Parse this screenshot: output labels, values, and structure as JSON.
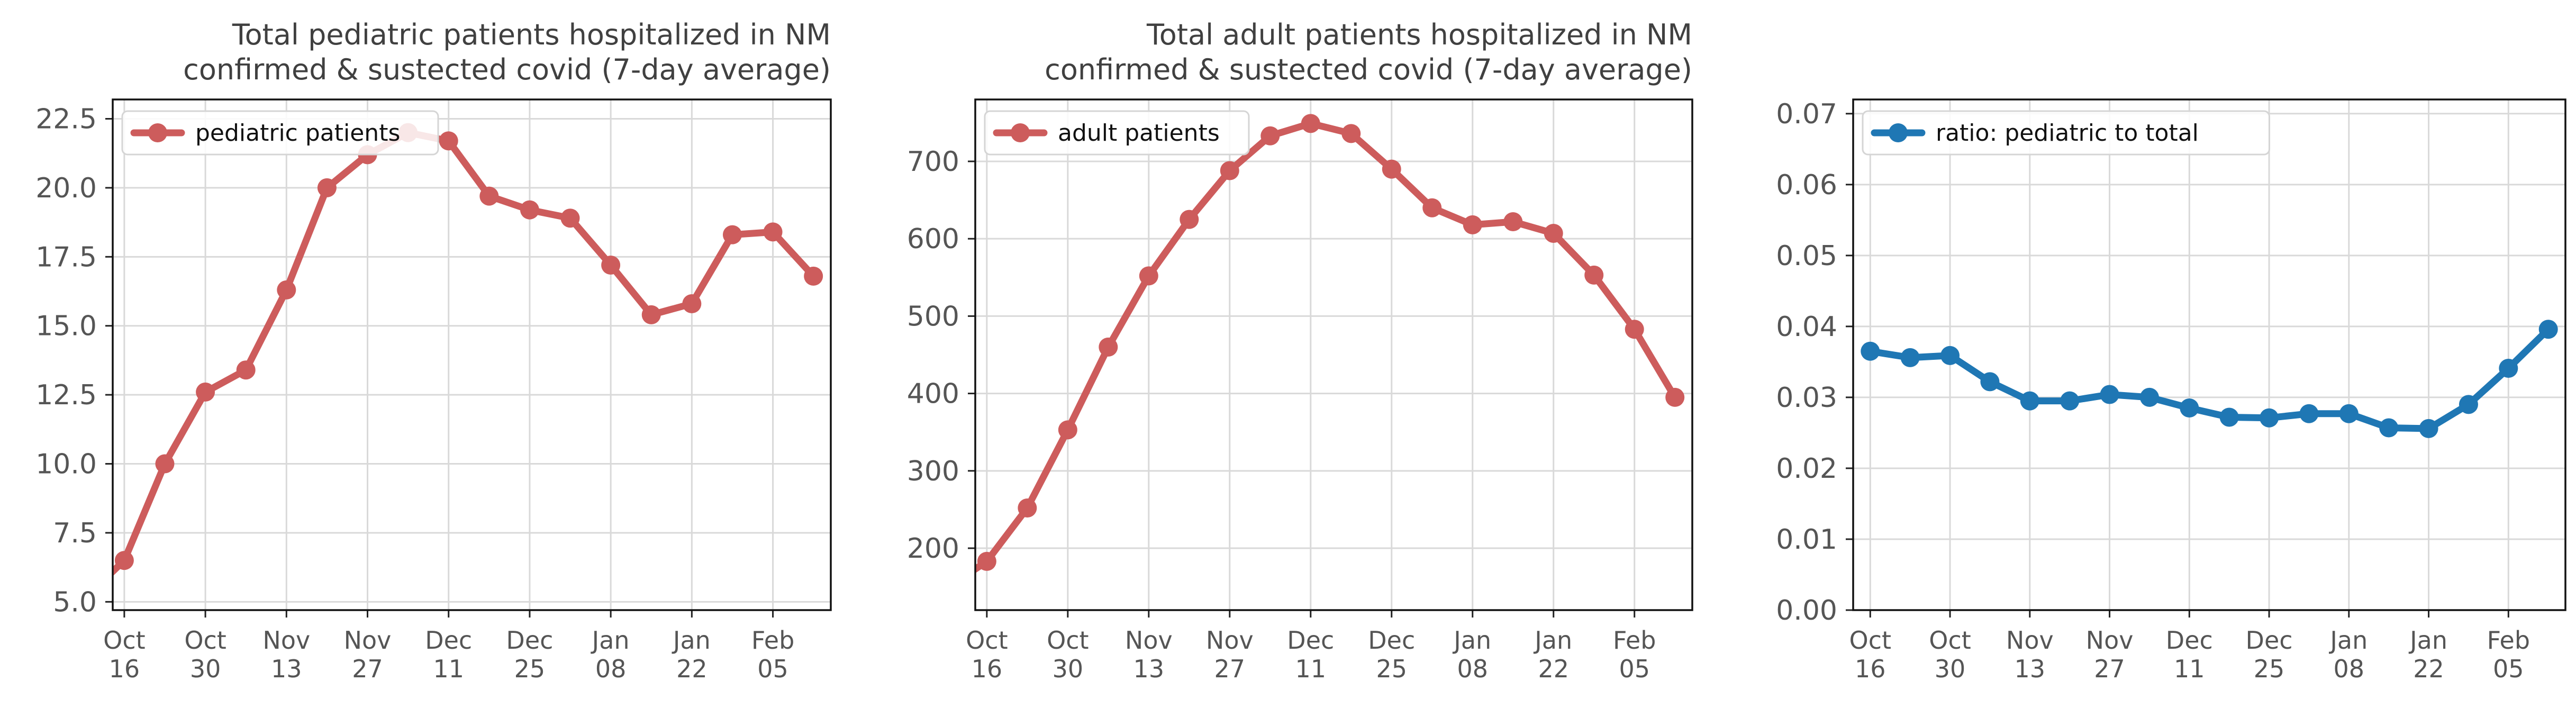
{
  "chart_data": [
    {
      "type": "line",
      "title": [
        "Total pediatric patients hospitalized in NM",
        "confirmed & sustected covid (7-day average)"
      ],
      "x": [
        "2021-10-16",
        "2021-10-23",
        "2021-10-30",
        "2021-11-06",
        "2021-11-13",
        "2021-11-20",
        "2021-11-27",
        "2021-12-04",
        "2021-12-11",
        "2021-12-18",
        "2021-12-25",
        "2022-01-01",
        "2022-01-08",
        "2022-01-15",
        "2022-01-22",
        "2022-01-29",
        "2022-02-05",
        "2022-02-12"
      ],
      "x_tick_labels": [
        {
          "month": "Oct",
          "day": "16"
        },
        {
          "month": "Oct",
          "day": "30"
        },
        {
          "month": "Nov",
          "day": "13"
        },
        {
          "month": "Nov",
          "day": "27"
        },
        {
          "month": "Dec",
          "day": "11"
        },
        {
          "month": "Dec",
          "day": "25"
        },
        {
          "month": "Jan",
          "day": "08"
        },
        {
          "month": "Jan",
          "day": "22"
        },
        {
          "month": "Feb",
          "day": "05"
        }
      ],
      "x_tick_dates": [
        "2021-10-16",
        "2021-10-30",
        "2021-11-13",
        "2021-11-27",
        "2021-12-11",
        "2021-12-25",
        "2022-01-08",
        "2022-01-22",
        "2022-02-05"
      ],
      "x_range": [
        "2021-10-14",
        "2022-02-15"
      ],
      "line_start": {
        "x": "2021-10-13",
        "y": 5.9
      },
      "series": [
        {
          "name": "pediatric patients",
          "color": "#cd5c5c",
          "marker": "circle",
          "values": [
            6.5,
            10.0,
            12.6,
            13.4,
            16.3,
            20.0,
            21.2,
            22.0,
            21.7,
            19.7,
            19.2,
            18.9,
            17.2,
            15.4,
            15.8,
            18.3,
            18.4,
            16.8
          ]
        }
      ],
      "yticks": [
        5.0,
        7.5,
        10.0,
        12.5,
        15.0,
        17.5,
        20.0,
        22.5
      ],
      "ytick_labels": [
        "5.0",
        "7.5",
        "10.0",
        "12.5",
        "15.0",
        "17.5",
        "20.0",
        "22.5"
      ],
      "ylim": [
        4.7,
        23.2
      ],
      "grid": true,
      "legend": "top-left"
    },
    {
      "type": "line",
      "title": [
        "Total adult patients hospitalized in NM",
        "confirmed & sustected covid (7-day average)"
      ],
      "x": [
        "2021-10-16",
        "2021-10-23",
        "2021-10-30",
        "2021-11-06",
        "2021-11-13",
        "2021-11-20",
        "2021-11-27",
        "2021-12-04",
        "2021-12-11",
        "2021-12-18",
        "2021-12-25",
        "2022-01-01",
        "2022-01-08",
        "2022-01-15",
        "2022-01-22",
        "2022-01-29",
        "2022-02-05",
        "2022-02-12"
      ],
      "x_tick_labels": [
        {
          "month": "Oct",
          "day": "16"
        },
        {
          "month": "Oct",
          "day": "30"
        },
        {
          "month": "Nov",
          "day": "13"
        },
        {
          "month": "Nov",
          "day": "27"
        },
        {
          "month": "Dec",
          "day": "11"
        },
        {
          "month": "Dec",
          "day": "25"
        },
        {
          "month": "Jan",
          "day": "08"
        },
        {
          "month": "Jan",
          "day": "22"
        },
        {
          "month": "Feb",
          "day": "05"
        }
      ],
      "x_tick_dates": [
        "2021-10-16",
        "2021-10-30",
        "2021-11-13",
        "2021-11-27",
        "2021-12-11",
        "2021-12-25",
        "2022-01-08",
        "2022-01-22",
        "2022-02-05"
      ],
      "x_range": [
        "2021-10-14",
        "2022-02-15"
      ],
      "line_start": {
        "x": "2021-10-13",
        "y": 168
      },
      "series": [
        {
          "name": "adult patients",
          "color": "#cd5c5c",
          "marker": "circle",
          "values": [
            183,
            252,
            353,
            460,
            552,
            625,
            688,
            733,
            749,
            736,
            690,
            640,
            618,
            622,
            607,
            553,
            483,
            395
          ]
        }
      ],
      "yticks": [
        200,
        300,
        400,
        500,
        600,
        700
      ],
      "ytick_labels": [
        "200",
        "300",
        "400",
        "500",
        "600",
        "700"
      ],
      "ylim": [
        120,
        780
      ],
      "grid": true,
      "legend": "top-left"
    },
    {
      "type": "line",
      "title": [],
      "x": [
        "2021-10-16",
        "2021-10-23",
        "2021-10-30",
        "2021-11-06",
        "2021-11-13",
        "2021-11-20",
        "2021-11-27",
        "2021-12-04",
        "2021-12-11",
        "2021-12-18",
        "2021-12-25",
        "2022-01-01",
        "2022-01-08",
        "2022-01-15",
        "2022-01-22",
        "2022-01-29",
        "2022-02-05",
        "2022-02-12"
      ],
      "x_tick_labels": [
        {
          "month": "Oct",
          "day": "16"
        },
        {
          "month": "Oct",
          "day": "30"
        },
        {
          "month": "Nov",
          "day": "13"
        },
        {
          "month": "Nov",
          "day": "27"
        },
        {
          "month": "Dec",
          "day": "11"
        },
        {
          "month": "Dec",
          "day": "25"
        },
        {
          "month": "Jan",
          "day": "08"
        },
        {
          "month": "Jan",
          "day": "22"
        },
        {
          "month": "Feb",
          "day": "05"
        }
      ],
      "x_tick_dates": [
        "2021-10-16",
        "2021-10-30",
        "2021-11-13",
        "2021-11-27",
        "2021-12-11",
        "2021-12-25",
        "2022-01-08",
        "2022-01-22",
        "2022-02-05"
      ],
      "x_range": [
        "2021-10-13",
        "2022-02-15"
      ],
      "series": [
        {
          "name": "ratio: pediatric to total",
          "color": "#1f77b4",
          "marker": "circle",
          "values": [
            0.0365,
            0.0356,
            0.0359,
            0.0322,
            0.0295,
            0.0295,
            0.0304,
            0.03,
            0.0285,
            0.0272,
            0.0271,
            0.0277,
            0.0277,
            0.0257,
            0.0256,
            0.029,
            0.0341,
            0.0396
          ]
        }
      ],
      "yticks": [
        0.0,
        0.01,
        0.02,
        0.03,
        0.04,
        0.05,
        0.06,
        0.07
      ],
      "ytick_labels": [
        "0.00",
        "0.01",
        "0.02",
        "0.03",
        "0.04",
        "0.05",
        "0.06",
        "0.07"
      ],
      "ylim": [
        0.0,
        0.072
      ],
      "grid": true,
      "legend": "top-left"
    }
  ]
}
